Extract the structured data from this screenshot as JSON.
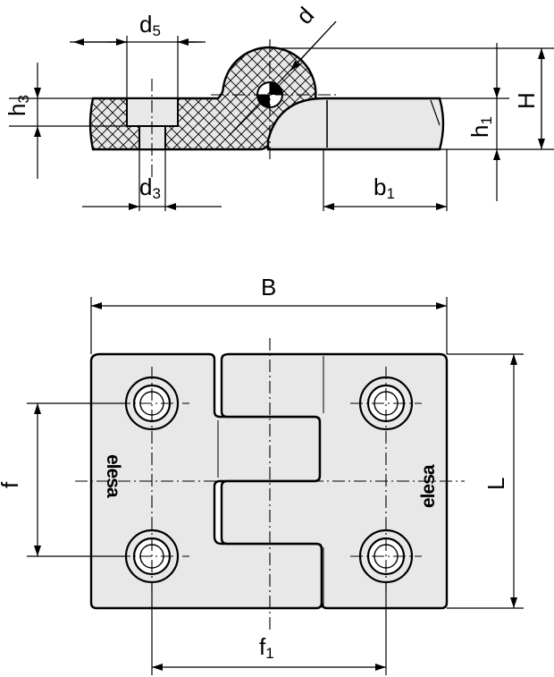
{
  "side_view": {
    "d5": {
      "main": "d",
      "sub": "5"
    },
    "d": {
      "main": "d"
    },
    "h3": {
      "main": "h",
      "sub": "3"
    },
    "H": {
      "main": "H"
    },
    "h1": {
      "main": "h",
      "sub": "1"
    },
    "d3": {
      "main": "d",
      "sub": "3"
    },
    "b1": {
      "main": "b",
      "sub": "1"
    }
  },
  "plan_view": {
    "B": {
      "main": "B"
    },
    "f": {
      "main": "f"
    },
    "L": {
      "main": "L"
    },
    "f1": {
      "main": "f",
      "sub": "1"
    },
    "logo_left": "elesa",
    "logo_right": "elesa"
  },
  "colors": {
    "part_fill": "#e8e8e8",
    "line": "#000000"
  }
}
